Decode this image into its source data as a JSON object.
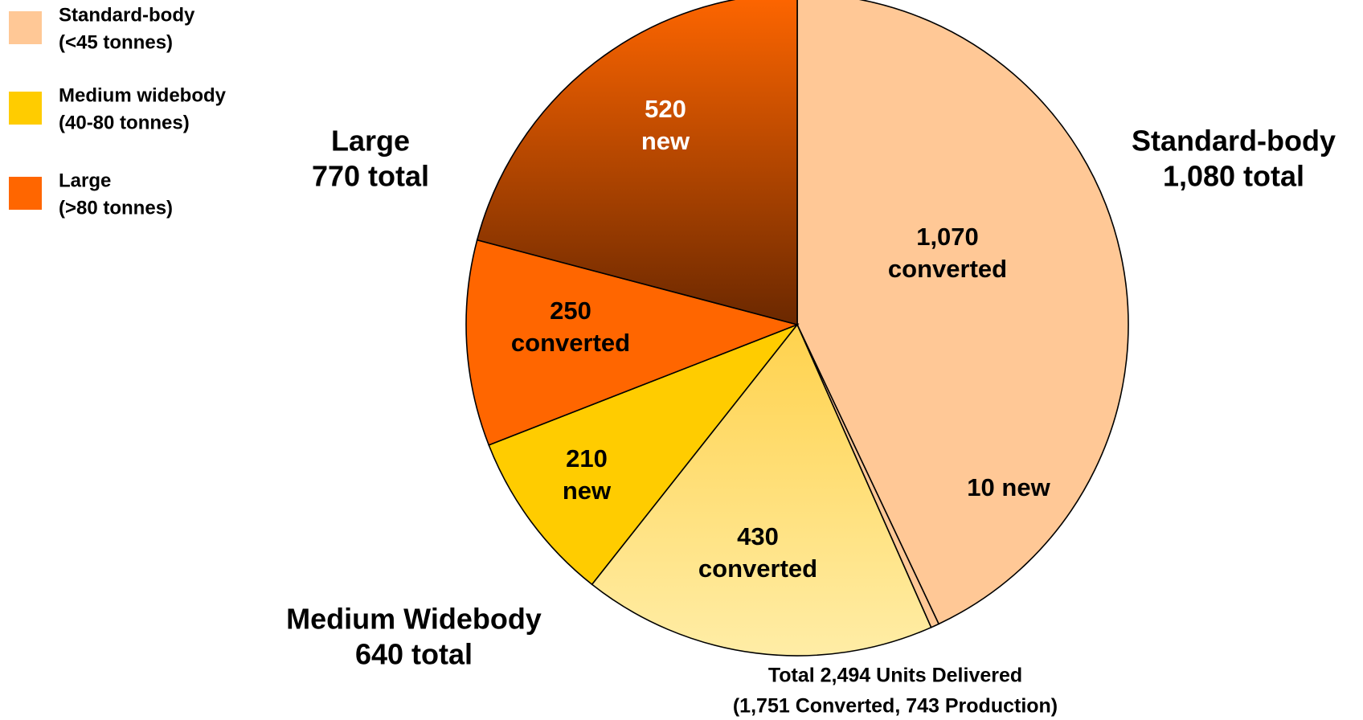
{
  "chart_data": {
    "type": "pie",
    "values": [
      1070,
      10,
      430,
      210,
      250,
      520
    ],
    "value_labels": [
      "1,070",
      "10",
      "430",
      "210",
      "250",
      "520"
    ],
    "categories": [
      "converted",
      "new",
      "converted",
      "new",
      "converted",
      "new"
    ],
    "colors": [
      "#FFC896",
      "#FFC896",
      "#FFE27A",
      "#FFCC00",
      "#FF6600",
      "#B84A00"
    ],
    "gradients": [
      null,
      null,
      [
        "#FFD24D",
        "#FFEDA6"
      ],
      null,
      null,
      [
        "#FF6600",
        "#6B2800"
      ]
    ],
    "label_colors": [
      "#000000",
      "#000000",
      "#000000",
      "#000000",
      "#000000",
      "#FFFFFF"
    ],
    "groups": [
      {
        "name": "Standard-body",
        "label": "1,080 total"
      },
      {
        "name": "Large",
        "label": "770 total"
      },
      {
        "name": "Medium Widebody",
        "label": "640 total"
      }
    ],
    "legend": [
      {
        "name": "Standard-body",
        "range": "(<45 tonnes)",
        "color": "#FFC896"
      },
      {
        "name": "Medium widebody",
        "range": "(40-80 tonnes)",
        "color": "#FFCC00"
      },
      {
        "name": "Large",
        "range": "(>80 tonnes)",
        "color": "#FF6600"
      }
    ],
    "footnote": [
      "Total 2,494 Units Delivered",
      "(1,751 Converted, 743 Production)"
    ]
  }
}
